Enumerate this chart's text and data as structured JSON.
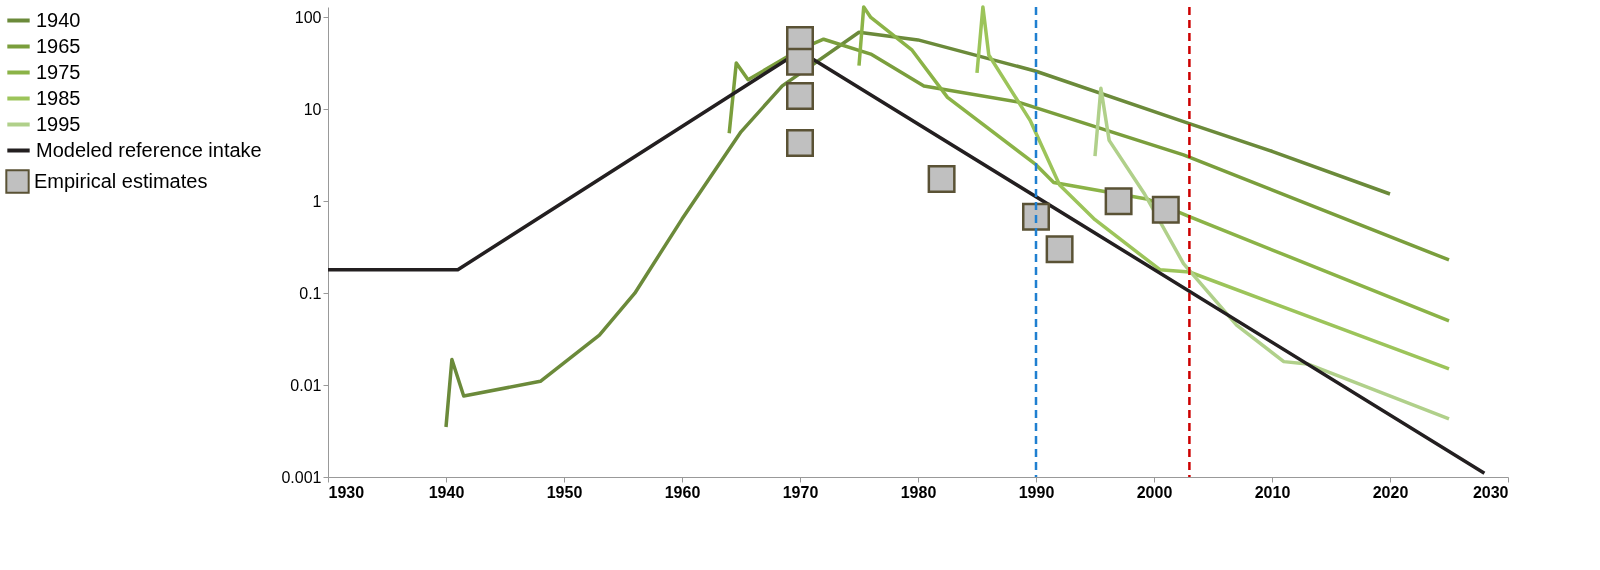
{
  "chart_data": {
    "type": "line",
    "xlim": [
      1930,
      2030
    ],
    "xticks": [
      1930,
      1940,
      1950,
      1960,
      1970,
      1980,
      1990,
      2000,
      2010,
      2020,
      2030
    ],
    "ylim": [
      0.001,
      130
    ],
    "yticks": [
      0.001,
      0.01,
      0.1,
      1,
      10,
      100
    ],
    "log": true,
    "grid": false,
    "legend": "left",
    "line_style": "solid",
    "series": [
      {
        "name": "1940",
        "color": "#6b8a3a",
        "x": [
          1940,
          1940.5,
          1941.5,
          1948,
          1953,
          1956,
          1960,
          1965,
          1968.5,
          1975,
          1980,
          1990,
          2003,
          2010,
          2020
        ],
        "values": [
          0.0035,
          0.019,
          0.0076,
          0.011,
          0.035,
          0.1,
          0.64,
          5.7,
          18,
          69,
          57,
          26,
          7,
          3.5,
          1.2
        ]
      },
      {
        "name": "1965",
        "color": "#7a9e3c",
        "x": [
          1964,
          1964.6,
          1965.6,
          1970,
          1972,
          1976,
          1980.5,
          1988.5,
          2002.5,
          2025
        ],
        "values": [
          5.5,
          32,
          21,
          45,
          58,
          40,
          18,
          12,
          3.2,
          0.23
        ]
      },
      {
        "name": "1975",
        "color": "#8bb347",
        "x": [
          1975,
          1975.4,
          1976,
          1979.5,
          1982.5,
          1990,
          1991.5,
          1999.5,
          2003,
          2025
        ],
        "values": [
          30,
          130,
          100,
          44,
          13.5,
          2.5,
          1.6,
          1.05,
          0.68,
          0.05
        ]
      },
      {
        "name": "1985",
        "color": "#9cc45a",
        "x": [
          1985,
          1985.5,
          1986,
          1989.5,
          1992,
          1995,
          2000.5,
          2003,
          2025
        ],
        "values": [
          25,
          130,
          39,
          7.6,
          1.5,
          0.63,
          0.18,
          0.17,
          0.015
        ]
      },
      {
        "name": "1995",
        "color": "#b0d08a",
        "x": [
          1995,
          1995.5,
          1996.2,
          1999.2,
          2002.5,
          2007,
          2011,
          2013,
          2025
        ],
        "values": [
          3.1,
          17,
          4.6,
          1.2,
          0.21,
          0.045,
          0.018,
          0.017,
          0.0043
        ]
      },
      {
        "name": "Empirical estimates",
        "type": "scatter",
        "marker": "square",
        "color": "#c0c0c0",
        "x": [
          1970,
          1970,
          1970,
          1970,
          1982,
          1990,
          1992,
          1997,
          2001
        ],
        "values": [
          57,
          33,
          14,
          4.3,
          1.75,
          0.68,
          0.3,
          1.0,
          0.81
        ]
      },
      {
        "name": "Modeled reference intake",
        "color": "#231f20",
        "x": [
          1930,
          1941,
          1970,
          2028
        ],
        "values": [
          0.18,
          0.18,
          43,
          0.0011
        ]
      }
    ],
    "ref_lines": [
      {
        "axis": "x",
        "value": 1990,
        "color": "#1f7fd0",
        "line_style": "dashed"
      },
      {
        "axis": "x",
        "value": 2003,
        "color": "#cc0000",
        "line_style": "dashed"
      }
    ]
  }
}
